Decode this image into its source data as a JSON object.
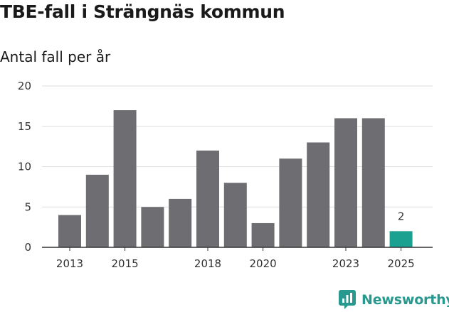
{
  "header": {
    "title": "TBE-fall i Strängnäs kommun",
    "subtitle": "Antal fall per år"
  },
  "chart_data": {
    "type": "bar",
    "title": "TBE-fall i Strängnäs kommun",
    "subtitle": "Antal fall per år",
    "categories": [
      "2013",
      "2014",
      "2015",
      "2016",
      "2017",
      "2018",
      "2019",
      "2020",
      "2021",
      "2022",
      "2023",
      "2024",
      "2025"
    ],
    "values": [
      4,
      9,
      17,
      5,
      6,
      12,
      8,
      3,
      11,
      13,
      16,
      16,
      2
    ],
    "x_tick_labels": [
      "2013",
      "",
      "2015",
      "",
      "",
      "2018",
      "",
      "2020",
      "",
      "",
      "2023",
      "",
      "2025"
    ],
    "y_ticks": [
      0,
      5,
      10,
      15,
      20
    ],
    "ylim": [
      0,
      20
    ],
    "xlabel": "",
    "ylabel": "",
    "grid": true,
    "highlight_index": 12,
    "highlight_label": "2",
    "colors": {
      "bar": "#6e6d72",
      "highlight": "#1aa190",
      "grid": "#dddddd",
      "axis": "#333333"
    }
  },
  "footer": {
    "logo_text": "Newsworthy",
    "logo_icon": "newsworthy-chart-icon",
    "logo_color": "#27998e"
  }
}
